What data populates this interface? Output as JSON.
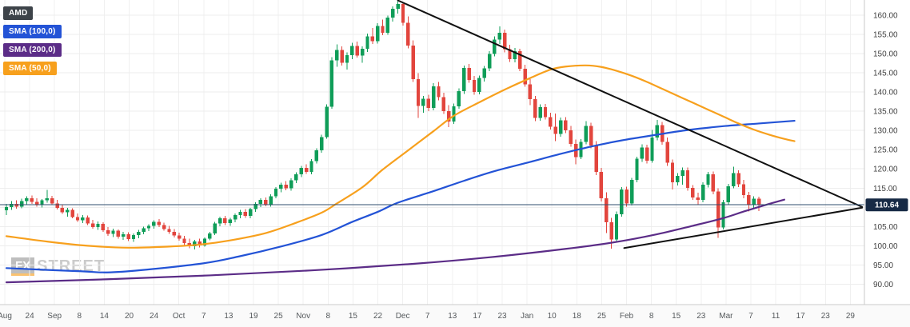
{
  "legend": {
    "items": [
      {
        "label": "AMD",
        "bg": "#3d4349",
        "fg": "#ffffff"
      },
      {
        "label": "SMA (100,0)",
        "bg": "#2353d6",
        "fg": "#ffffff"
      },
      {
        "label": "SMA (200,0)",
        "bg": "#5b2c87",
        "fg": "#ffffff"
      },
      {
        "label": "SMA (50,0)",
        "bg": "#f7a01d",
        "fg": "#ffffff"
      }
    ]
  },
  "watermark": {
    "fx": "FX",
    "street": "STREET"
  },
  "price_axis": {
    "tick_labels": [
      "160.00",
      "155.00",
      "150.00",
      "145.00",
      "140.00",
      "135.00",
      "130.00",
      "125.00",
      "120.00",
      "115.00",
      "105.00",
      "100.00",
      "95.00",
      "90.00"
    ]
  },
  "time_axis": {
    "labels": [
      "Aug",
      "24",
      "Sep",
      "8",
      "14",
      "20",
      "24",
      "Oct",
      "7",
      "13",
      "19",
      "25",
      "Nov",
      "8",
      "15",
      "22",
      "Dec",
      "7",
      "13",
      "17",
      "23",
      "Jan",
      "10",
      "18",
      "25",
      "Feb",
      "8",
      "15",
      "23",
      "Mar",
      "7",
      "11",
      "17",
      "23",
      "29"
    ]
  },
  "chart_data": {
    "type": "candlestick",
    "title": "AMD",
    "current_price": 110.64,
    "current_price_label": "110.64",
    "ylim": [
      90,
      160
    ],
    "y_tick_step": 5,
    "grid": true,
    "legend_position": "top-left",
    "candles": [
      [
        109.2,
        110.9,
        108.0,
        110.1
      ],
      [
        110.1,
        111.6,
        109.3,
        110.9
      ],
      [
        110.9,
        111.8,
        109.6,
        110.2
      ],
      [
        110.2,
        112.2,
        109.8,
        111.6
      ],
      [
        111.6,
        112.9,
        110.7,
        112.3
      ],
      [
        112.3,
        113.1,
        110.9,
        111.4
      ],
      [
        111.4,
        112.4,
        110.2,
        110.7
      ],
      [
        110.7,
        112.1,
        110.0,
        111.8
      ],
      [
        111.8,
        114.5,
        111.2,
        112.4
      ],
      [
        112.4,
        113.0,
        110.6,
        111.0
      ],
      [
        111.0,
        111.9,
        109.4,
        109.9
      ],
      [
        109.9,
        110.8,
        108.3,
        108.7
      ],
      [
        108.7,
        109.9,
        107.6,
        109.3
      ],
      [
        109.3,
        109.8,
        107.1,
        107.5
      ],
      [
        107.5,
        108.4,
        106.2,
        106.6
      ],
      [
        106.6,
        108.0,
        105.9,
        107.4
      ],
      [
        107.4,
        107.9,
        105.4,
        105.8
      ],
      [
        105.8,
        106.7,
        104.4,
        104.9
      ],
      [
        104.9,
        106.3,
        104.1,
        105.7
      ],
      [
        105.7,
        106.1,
        103.6,
        104.0
      ],
      [
        104.0,
        104.9,
        102.6,
        103.1
      ],
      [
        103.1,
        104.4,
        102.3,
        103.9
      ],
      [
        103.9,
        104.2,
        101.9,
        102.4
      ],
      [
        102.4,
        103.6,
        101.5,
        103.0
      ],
      [
        103.0,
        103.5,
        101.2,
        101.7
      ],
      [
        101.7,
        103.2,
        101.0,
        102.8
      ],
      [
        102.8,
        104.1,
        102.0,
        103.6
      ],
      [
        103.6,
        105.0,
        103.0,
        104.6
      ],
      [
        104.6,
        105.6,
        103.8,
        105.2
      ],
      [
        105.2,
        106.6,
        104.5,
        106.2
      ],
      [
        106.2,
        106.9,
        104.9,
        105.4
      ],
      [
        105.4,
        106.0,
        103.9,
        104.3
      ],
      [
        104.3,
        105.2,
        103.1,
        103.6
      ],
      [
        103.6,
        104.3,
        102.2,
        102.7
      ],
      [
        102.7,
        103.4,
        101.3,
        101.8
      ],
      [
        101.8,
        102.6,
        100.2,
        100.7
      ],
      [
        100.7,
        101.9,
        99.4,
        99.9
      ],
      [
        99.9,
        101.5,
        99.0,
        101.1
      ],
      [
        101.1,
        101.8,
        99.6,
        100.1
      ],
      [
        100.1,
        102.2,
        99.8,
        101.9
      ],
      [
        101.9,
        103.6,
        101.4,
        103.2
      ],
      [
        103.2,
        106.2,
        102.8,
        105.8
      ],
      [
        105.8,
        107.6,
        105.1,
        107.1
      ],
      [
        107.1,
        107.8,
        105.4,
        105.9
      ],
      [
        105.9,
        107.3,
        105.2,
        106.8
      ],
      [
        106.8,
        108.4,
        106.1,
        108.0
      ],
      [
        108.0,
        109.3,
        107.2,
        108.8
      ],
      [
        108.8,
        109.5,
        107.3,
        107.8
      ],
      [
        107.8,
        109.9,
        107.2,
        109.5
      ],
      [
        109.5,
        111.3,
        108.8,
        110.9
      ],
      [
        110.9,
        112.4,
        110.1,
        111.9
      ],
      [
        111.9,
        112.6,
        110.3,
        110.8
      ],
      [
        110.8,
        113.4,
        110.2,
        112.9
      ],
      [
        112.9,
        115.3,
        112.3,
        114.8
      ],
      [
        114.8,
        116.4,
        113.9,
        115.9
      ],
      [
        115.9,
        116.8,
        114.4,
        114.9
      ],
      [
        114.9,
        117.5,
        114.3,
        117.0
      ],
      [
        117.0,
        119.1,
        116.3,
        118.6
      ],
      [
        118.6,
        120.8,
        117.9,
        120.3
      ],
      [
        120.3,
        121.2,
        118.7,
        119.2
      ],
      [
        119.2,
        122.5,
        118.6,
        122.0
      ],
      [
        122.0,
        125.3,
        121.4,
        124.8
      ],
      [
        124.8,
        128.9,
        124.2,
        128.3
      ],
      [
        128.3,
        136.8,
        127.8,
        136.2
      ],
      [
        136.2,
        149.0,
        135.6,
        148.2
      ],
      [
        148.2,
        152.4,
        146.5,
        150.9
      ],
      [
        150.9,
        151.8,
        146.9,
        147.6
      ],
      [
        147.6,
        150.3,
        145.8,
        149.6
      ],
      [
        149.6,
        152.8,
        148.5,
        152.0
      ],
      [
        152.0,
        153.1,
        148.9,
        149.5
      ],
      [
        149.5,
        151.9,
        147.6,
        151.2
      ],
      [
        151.2,
        155.2,
        150.4,
        154.5
      ],
      [
        154.5,
        156.6,
        152.5,
        153.2
      ],
      [
        153.2,
        157.9,
        152.6,
        157.2
      ],
      [
        157.2,
        158.8,
        154.8,
        155.4
      ],
      [
        155.4,
        159.9,
        154.9,
        159.3
      ],
      [
        159.3,
        162.2,
        158.3,
        161.6
      ],
      [
        161.6,
        163.6,
        160.4,
        162.9
      ],
      [
        162.9,
        163.4,
        157.3,
        158.0
      ],
      [
        158.0,
        159.6,
        151.3,
        152.1
      ],
      [
        152.1,
        153.4,
        142.6,
        143.3
      ],
      [
        143.3,
        144.9,
        133.2,
        136.4
      ],
      [
        136.4,
        139.0,
        134.6,
        138.2
      ],
      [
        138.2,
        139.3,
        135.0,
        135.8
      ],
      [
        135.8,
        142.3,
        135.2,
        141.5
      ],
      [
        141.5,
        142.6,
        137.8,
        138.6
      ],
      [
        138.6,
        139.8,
        134.3,
        135.0
      ],
      [
        135.0,
        136.6,
        130.9,
        132.3
      ],
      [
        132.3,
        137.0,
        131.7,
        136.3
      ],
      [
        136.3,
        140.9,
        135.6,
        140.2
      ],
      [
        140.2,
        146.9,
        139.5,
        146.2
      ],
      [
        146.2,
        147.3,
        142.4,
        143.1
      ],
      [
        143.1,
        144.2,
        139.3,
        140.0
      ],
      [
        140.0,
        144.3,
        139.4,
        143.6
      ],
      [
        143.6,
        146.8,
        142.7,
        146.1
      ],
      [
        146.1,
        150.6,
        145.4,
        149.9
      ],
      [
        149.9,
        154.4,
        149.2,
        153.6
      ],
      [
        153.6,
        157.0,
        152.5,
        155.4
      ],
      [
        155.4,
        156.2,
        150.3,
        151.1
      ],
      [
        151.1,
        152.3,
        147.8,
        148.5
      ],
      [
        148.5,
        151.4,
        147.7,
        150.6
      ],
      [
        150.6,
        151.2,
        145.4,
        146.0
      ],
      [
        146.0,
        147.1,
        141.3,
        142.0
      ],
      [
        142.0,
        143.3,
        136.6,
        138.1
      ],
      [
        138.1,
        139.0,
        132.4,
        133.2
      ],
      [
        133.2,
        136.8,
        132.5,
        136.0
      ],
      [
        136.0,
        136.9,
        132.8,
        133.4
      ],
      [
        133.4,
        134.6,
        130.2,
        131.0
      ],
      [
        131.0,
        134.4,
        127.2,
        129.1
      ],
      [
        129.1,
        133.3,
        128.4,
        132.6
      ],
      [
        132.6,
        133.4,
        129.3,
        130.0
      ],
      [
        130.0,
        131.2,
        125.8,
        126.5
      ],
      [
        126.5,
        127.6,
        121.2,
        123.1
      ],
      [
        123.1,
        127.7,
        122.5,
        127.0
      ],
      [
        127.0,
        132.4,
        126.4,
        131.2
      ],
      [
        131.2,
        132.0,
        125.3,
        126.1
      ],
      [
        126.1,
        127.2,
        118.4,
        119.2
      ],
      [
        119.2,
        120.3,
        111.5,
        112.3
      ],
      [
        112.3,
        113.9,
        103.3,
        106.1
      ],
      [
        106.1,
        107.3,
        99.3,
        101.6
      ],
      [
        101.6,
        108.9,
        100.8,
        108.2
      ],
      [
        108.2,
        115.3,
        107.6,
        114.6
      ],
      [
        114.6,
        115.4,
        110.2,
        111.0
      ],
      [
        111.0,
        117.6,
        110.5,
        117.1
      ],
      [
        117.1,
        123.2,
        116.5,
        122.6
      ],
      [
        122.6,
        126.4,
        121.8,
        125.6
      ],
      [
        125.6,
        126.3,
        121.4,
        122.1
      ],
      [
        122.1,
        130.1,
        121.6,
        128.2
      ],
      [
        128.2,
        132.7,
        127.4,
        131.4
      ],
      [
        131.4,
        132.2,
        126.3,
        127.0
      ],
      [
        127.0,
        128.1,
        120.8,
        121.6
      ],
      [
        121.6,
        122.4,
        114.6,
        116.5
      ],
      [
        116.5,
        118.9,
        115.7,
        118.2
      ],
      [
        118.2,
        120.4,
        115.9,
        119.6
      ],
      [
        119.6,
        120.4,
        114.3,
        115.1
      ],
      [
        115.1,
        115.8,
        111.9,
        112.6
      ],
      [
        112.6,
        113.8,
        110.6,
        111.9
      ],
      [
        111.9,
        116.5,
        111.3,
        115.9
      ],
      [
        115.9,
        119.2,
        115.2,
        118.6
      ],
      [
        118.6,
        119.3,
        113.4,
        114.1
      ],
      [
        114.1,
        115.0,
        102.1,
        104.8
      ],
      [
        104.8,
        111.9,
        104.2,
        111.3
      ],
      [
        111.3,
        116.1,
        110.7,
        115.5
      ],
      [
        115.5,
        120.6,
        114.9,
        118.9
      ],
      [
        118.9,
        119.6,
        115.3,
        116.0
      ],
      [
        116.0,
        117.1,
        112.4,
        113.2
      ],
      [
        113.2,
        114.0,
        108.9,
        110.6
      ],
      [
        110.6,
        112.9,
        109.8,
        112.2
      ],
      [
        112.2,
        112.8,
        109.0,
        110.6
      ]
    ],
    "overlays": [
      {
        "name": "SMA (50,0)",
        "color": "#f7a01d",
        "points": [
          [
            0,
            102.5
          ],
          [
            8,
            101.1
          ],
          [
            16,
            100.0
          ],
          [
            24,
            99.5
          ],
          [
            32,
            99.8
          ],
          [
            38,
            100.3
          ],
          [
            44,
            101.4
          ],
          [
            51,
            103.3
          ],
          [
            57,
            106.0
          ],
          [
            62,
            108.6
          ],
          [
            65,
            111.0
          ],
          [
            70,
            115.2
          ],
          [
            74,
            119.8
          ],
          [
            79,
            124.8
          ],
          [
            84,
            129.8
          ],
          [
            88,
            133.8
          ],
          [
            93,
            137.3
          ],
          [
            98,
            140.6
          ],
          [
            103,
            143.6
          ],
          [
            107,
            145.8
          ],
          [
            110,
            146.6
          ],
          [
            114,
            146.9
          ],
          [
            117,
            146.5
          ],
          [
            120,
            145.5
          ],
          [
            123,
            144.2
          ],
          [
            126,
            142.6
          ],
          [
            129,
            140.8
          ],
          [
            133,
            138.4
          ],
          [
            137,
            136.0
          ],
          [
            141,
            133.6
          ],
          [
            144,
            131.8
          ],
          [
            147,
            130.2
          ],
          [
            150,
            128.9
          ],
          [
            153,
            127.8
          ],
          [
            155,
            127.2
          ]
        ]
      },
      {
        "name": "SMA (100,0)",
        "color": "#2353d6",
        "points": [
          [
            0,
            94.2
          ],
          [
            14,
            93.4
          ],
          [
            22,
            93.2
          ],
          [
            38,
            95.3
          ],
          [
            46,
            97.3
          ],
          [
            54,
            99.8
          ],
          [
            62,
            102.8
          ],
          [
            68,
            106.2
          ],
          [
            73,
            108.8
          ],
          [
            77,
            111.2
          ],
          [
            84,
            114.2
          ],
          [
            90,
            116.9
          ],
          [
            96,
            119.4
          ],
          [
            103,
            121.8
          ],
          [
            109,
            123.9
          ],
          [
            115,
            125.8
          ],
          [
            121,
            127.4
          ],
          [
            128,
            128.9
          ],
          [
            134,
            130.1
          ],
          [
            141,
            131.1
          ],
          [
            148,
            131.8
          ],
          [
            155,
            132.5
          ]
        ]
      },
      {
        "name": "SMA (200,0)",
        "color": "#5b2c87",
        "points": [
          [
            0,
            90.5
          ],
          [
            20,
            91.3
          ],
          [
            40,
            92.3
          ],
          [
            60,
            93.6
          ],
          [
            80,
            95.3
          ],
          [
            95,
            97.0
          ],
          [
            110,
            99.2
          ],
          [
            120,
            101.0
          ],
          [
            128,
            103.0
          ],
          [
            135,
            105.2
          ],
          [
            141,
            107.2
          ],
          [
            145,
            108.9
          ],
          [
            149,
            110.5
          ],
          [
            153,
            112.0
          ]
        ]
      }
    ],
    "trendlines": [
      {
        "name": "descending-resistance",
        "from": [
          77,
          163.8
        ],
        "to": [
          168.3,
          110.1
        ]
      },
      {
        "name": "rising-support",
        "from": [
          121.5,
          99.4
        ],
        "to": [
          168.3,
          109.9
        ]
      }
    ],
    "price_line": {
      "value": 110.64,
      "color": "#2f4d6e"
    },
    "colors": {
      "up": "#0f9d58",
      "down": "#e2453d",
      "grid": "#ededed",
      "vgrid": "#f0f0f0",
      "axis_text": "#424242",
      "time_text": "#55595c",
      "badge_bg": "#172a45",
      "badge_fg": "#ffffff",
      "trendline": "#111111",
      "border": "#c8c8c8",
      "axis_strip": "#fafafa",
      "background": "#ffffff"
    }
  }
}
